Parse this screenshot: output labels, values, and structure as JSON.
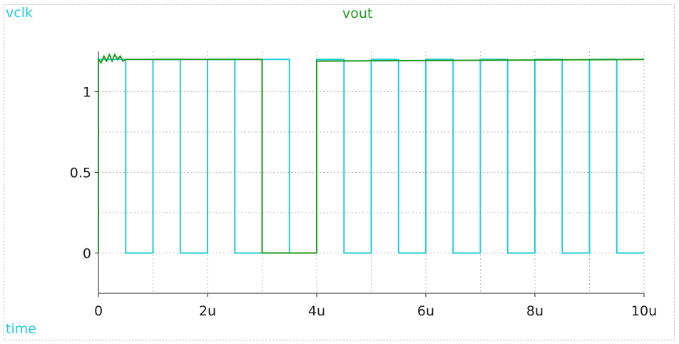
{
  "chart_data": {
    "type": "line",
    "title": "",
    "xlabel": "time",
    "ylabel": "",
    "xlim": [
      0,
      10
    ],
    "ylim": [
      -0.25,
      1.25
    ],
    "x_ticks": [
      {
        "value": 0,
        "label": "0"
      },
      {
        "value": 2,
        "label": "2u"
      },
      {
        "value": 4,
        "label": "4u"
      },
      {
        "value": 6,
        "label": "6u"
      },
      {
        "value": 8,
        "label": "8u"
      },
      {
        "value": 10,
        "label": "10u"
      }
    ],
    "y_ticks": [
      {
        "value": 0,
        "label": "0"
      },
      {
        "value": 0.5,
        "label": "0.5"
      },
      {
        "value": 1,
        "label": "1"
      }
    ],
    "x_minor_grid": [
      1,
      3,
      5,
      7,
      9
    ],
    "y_minor_grid": [
      -0.25,
      0.25,
      0.75
    ],
    "grid": true,
    "series": [
      {
        "name": "vclk",
        "color": "#22cbd9",
        "points": [
          [
            0,
            0
          ],
          [
            0,
            1.2
          ],
          [
            0.5,
            1.2
          ],
          [
            0.5,
            0
          ],
          [
            1,
            0
          ],
          [
            1,
            1.2
          ],
          [
            1.5,
            1.2
          ],
          [
            1.5,
            0
          ],
          [
            2,
            0
          ],
          [
            2,
            1.2
          ],
          [
            2.5,
            1.2
          ],
          [
            2.5,
            0
          ],
          [
            3,
            0
          ],
          [
            3,
            1.2
          ],
          [
            3.5,
            1.2
          ],
          [
            3.5,
            0
          ],
          [
            4,
            0
          ],
          [
            4,
            1.2
          ],
          [
            4.5,
            1.2
          ],
          [
            4.5,
            0
          ],
          [
            5,
            0
          ],
          [
            5,
            1.2
          ],
          [
            5.5,
            1.2
          ],
          [
            5.5,
            0
          ],
          [
            6,
            0
          ],
          [
            6,
            1.2
          ],
          [
            6.5,
            1.2
          ],
          [
            6.5,
            0
          ],
          [
            7,
            0
          ],
          [
            7,
            1.2
          ],
          [
            7.5,
            1.2
          ],
          [
            7.5,
            0
          ],
          [
            8,
            0
          ],
          [
            8,
            1.2
          ],
          [
            8.5,
            1.2
          ],
          [
            8.5,
            0
          ],
          [
            9,
            0
          ],
          [
            9,
            1.2
          ],
          [
            9.5,
            1.2
          ],
          [
            9.5,
            0
          ],
          [
            10,
            0
          ]
        ]
      },
      {
        "name": "vout",
        "color": "#1f9a1f",
        "points": [
          [
            0,
            0
          ],
          [
            0,
            1.2
          ],
          [
            0.05,
            1.18
          ],
          [
            0.1,
            1.22
          ],
          [
            0.15,
            1.19
          ],
          [
            0.2,
            1.23
          ],
          [
            0.25,
            1.19
          ],
          [
            0.3,
            1.23
          ],
          [
            0.35,
            1.2
          ],
          [
            0.4,
            1.22
          ],
          [
            0.45,
            1.19
          ],
          [
            0.5,
            1.2
          ],
          [
            3,
            1.2
          ],
          [
            3,
            0
          ],
          [
            4,
            0
          ],
          [
            4,
            1.19
          ],
          [
            10,
            1.2
          ]
        ]
      }
    ]
  },
  "labels": {
    "vclk": "vclk",
    "vout": "vout",
    "time": "time"
  },
  "colors": {
    "vclk": "#22cbd9",
    "vout": "#1f9a1f",
    "time": "#22cbd9",
    "grid": "#b3b3b3",
    "axis": "#1a1a1a"
  }
}
